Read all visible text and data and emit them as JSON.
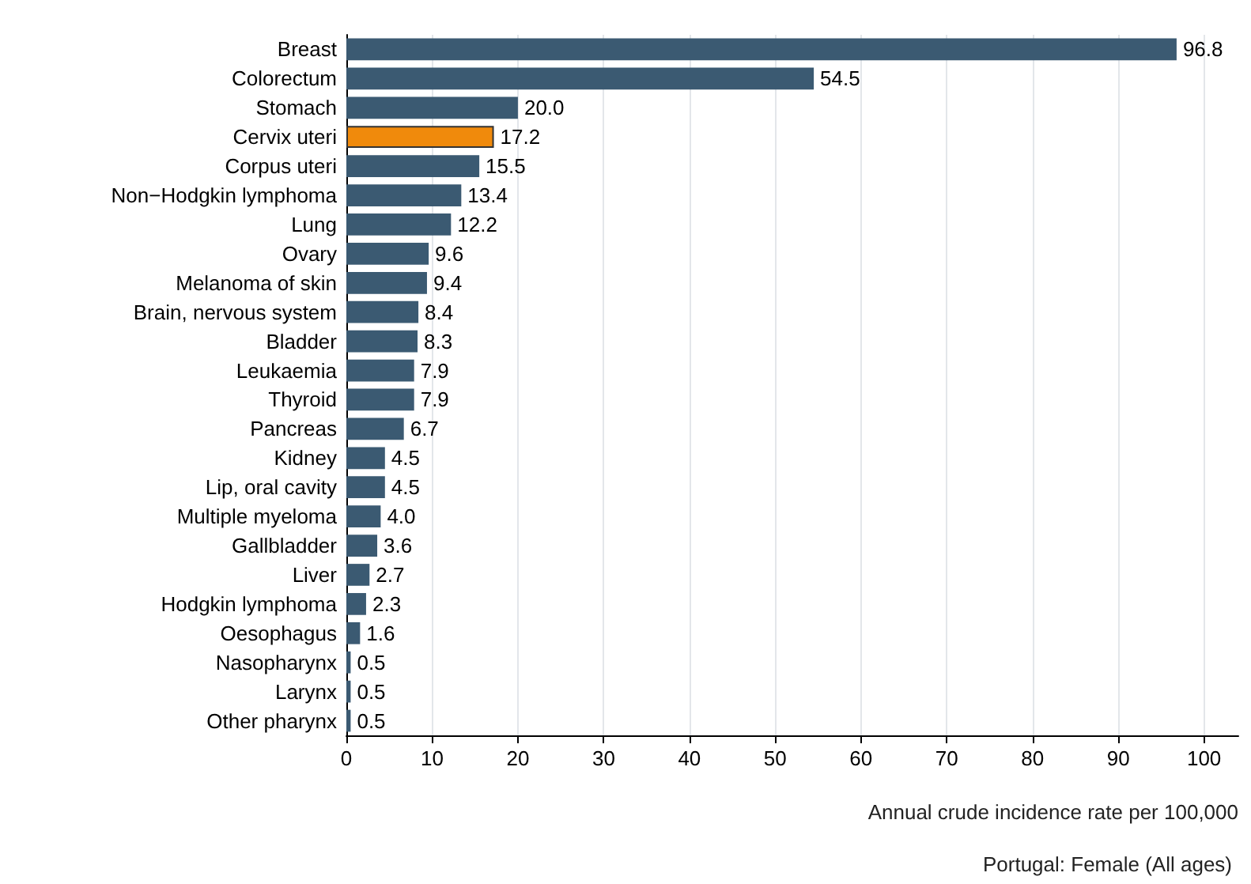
{
  "chart_data": {
    "type": "bar",
    "orientation": "horizontal",
    "xlabel": "Annual crude incidence rate per 100,000",
    "annotations": [
      "Portugal: Female (All ages)"
    ],
    "categories": [
      "Breast",
      "Colorectum",
      "Stomach",
      "Cervix uteri",
      "Corpus uteri",
      "Non−Hodgkin lymphoma",
      "Lung",
      "Ovary",
      "Melanoma of skin",
      "Brain, nervous system",
      "Bladder",
      "Leukaemia",
      "Thyroid",
      "Pancreas",
      "Kidney",
      "Lip, oral cavity",
      "Multiple myeloma",
      "Gallbladder",
      "Liver",
      "Hodgkin lymphoma",
      "Oesophagus",
      "Nasopharynx",
      "Larynx",
      "Other pharynx"
    ],
    "values": [
      96.8,
      54.5,
      20.0,
      17.2,
      15.5,
      13.4,
      12.2,
      9.6,
      9.4,
      8.4,
      8.3,
      7.9,
      7.9,
      6.7,
      4.5,
      4.5,
      4.0,
      3.6,
      2.7,
      2.3,
      1.6,
      0.5,
      0.5,
      0.5
    ],
    "value_labels": [
      "96.8",
      "54.5",
      "20.0",
      "17.2",
      "15.5",
      "13.4",
      "12.2",
      "9.6",
      "9.4",
      "8.4",
      "8.3",
      "7.9",
      "7.9",
      "6.7",
      "4.5",
      "4.5",
      "4.0",
      "3.6",
      "2.7",
      "2.3",
      "1.6",
      "0.5",
      "0.5",
      "0.5"
    ],
    "colors": [
      "#3b5a72",
      "#3b5a72",
      "#3b5a72",
      "#f08a0c",
      "#3b5a72",
      "#3b5a72",
      "#3b5a72",
      "#3b5a72",
      "#3b5a72",
      "#3b5a72",
      "#3b5a72",
      "#3b5a72",
      "#3b5a72",
      "#3b5a72",
      "#3b5a72",
      "#3b5a72",
      "#3b5a72",
      "#3b5a72",
      "#3b5a72",
      "#3b5a72",
      "#3b5a72",
      "#3b5a72",
      "#3b5a72",
      "#3b5a72"
    ],
    "xlim": [
      0,
      104
    ],
    "xticks": [
      0,
      10,
      20,
      30,
      40,
      50,
      60,
      70,
      80,
      90,
      100
    ],
    "grid": "x"
  }
}
